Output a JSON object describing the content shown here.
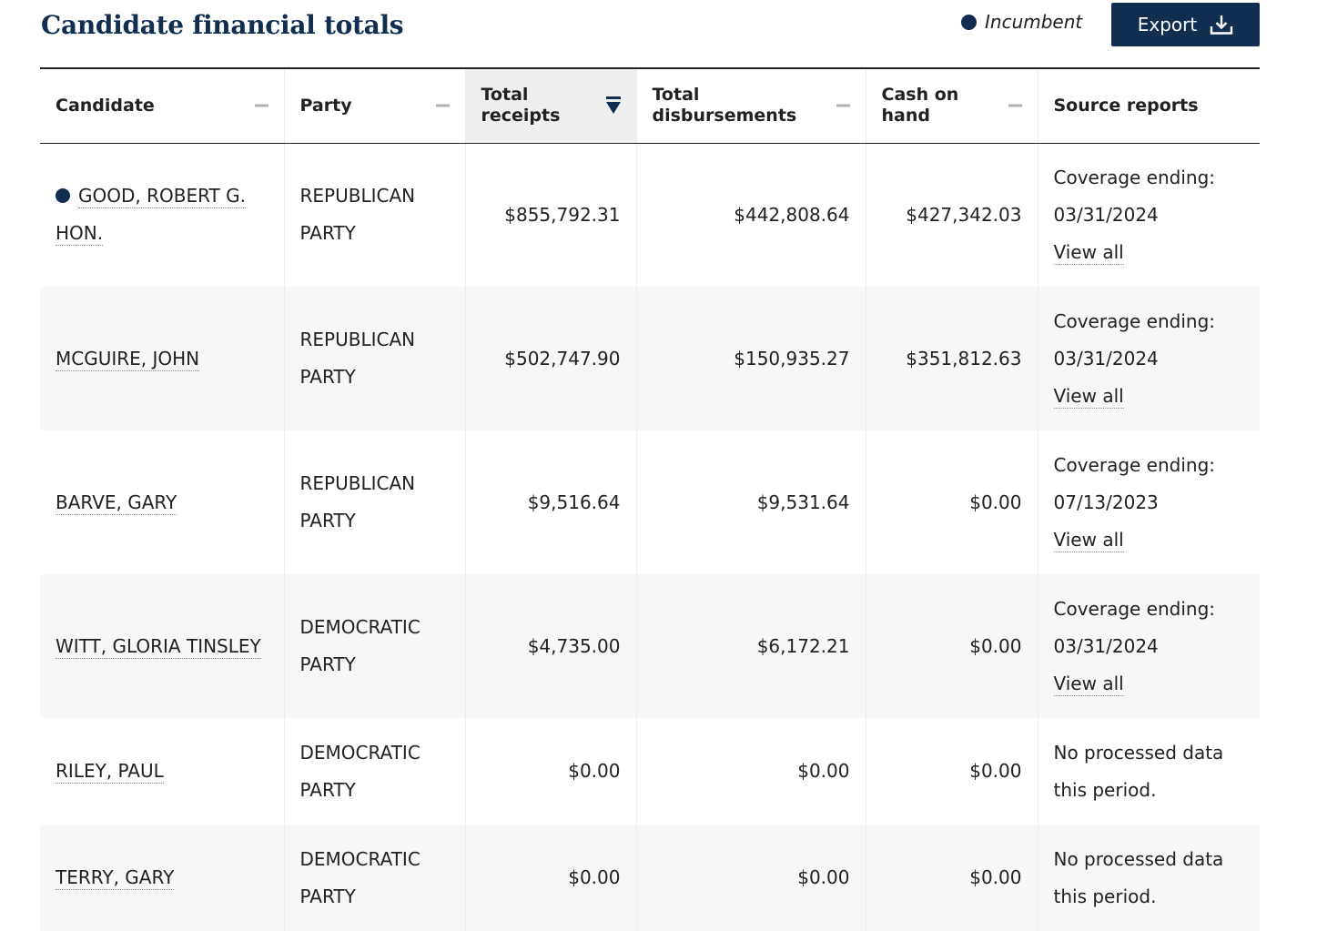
{
  "title": "Candidate financial totals",
  "legend": {
    "label": "Incumbent"
  },
  "export": {
    "label": "Export"
  },
  "colors": {
    "navy": "#112e51",
    "sorted_header_bg": "#efefef",
    "zebra": "#f7f7f7"
  },
  "table": {
    "sorted_column": "Total receipts",
    "columns": {
      "candidate": "Candidate",
      "party": "Party",
      "receipts": [
        "Total",
        "receipts"
      ],
      "disbursements": [
        "Total",
        "disbursements"
      ],
      "cash": [
        "Cash on",
        "hand"
      ],
      "source": "Source reports"
    },
    "rows": [
      {
        "name_1": "GOOD, ROBERT G.",
        "name_2": "HON.",
        "incumbent": true,
        "party_1": "REPUBLICAN",
        "party_2": "PARTY",
        "receipts": "$855,792.31",
        "disbursements": "$442,808.64",
        "cash": "$427,342.03",
        "coverage_label": "Coverage ending:",
        "coverage_date": "03/31/2024",
        "view_all": "View all"
      },
      {
        "name_1": "MCGUIRE, JOHN",
        "party_1": "REPUBLICAN",
        "party_2": "PARTY",
        "receipts": "$502,747.90",
        "disbursements": "$150,935.27",
        "cash": "$351,812.63",
        "coverage_label": "Coverage ending:",
        "coverage_date": "03/31/2024",
        "view_all": "View all"
      },
      {
        "name_1": "BARVE, GARY",
        "party_1": "REPUBLICAN",
        "party_2": "PARTY",
        "receipts": "$9,516.64",
        "disbursements": "$9,531.64",
        "cash": "$0.00",
        "coverage_label": "Coverage ending:",
        "coverage_date": "07/13/2023",
        "view_all": "View all"
      },
      {
        "name_1": "WITT, GLORIA TINSLEY",
        "party_1": "DEMOCRATIC",
        "party_2": "PARTY",
        "receipts": "$4,735.00",
        "disbursements": "$6,172.21",
        "cash": "$0.00",
        "coverage_label": "Coverage ending:",
        "coverage_date": "03/31/2024",
        "view_all": "View all"
      },
      {
        "name_1": "RILEY, PAUL",
        "party_1": "DEMOCRATIC",
        "party_2": "PARTY",
        "receipts": "$0.00",
        "disbursements": "$0.00",
        "cash": "$0.00",
        "no_data_1": "No processed data",
        "no_data_2": "this period."
      },
      {
        "name_1": "TERRY, GARY",
        "party_1": "DEMOCRATIC",
        "party_2": "PARTY",
        "receipts": "$0.00",
        "disbursements": "$0.00",
        "cash": "$0.00",
        "no_data_1": "No processed data",
        "no_data_2": "this period."
      }
    ]
  }
}
